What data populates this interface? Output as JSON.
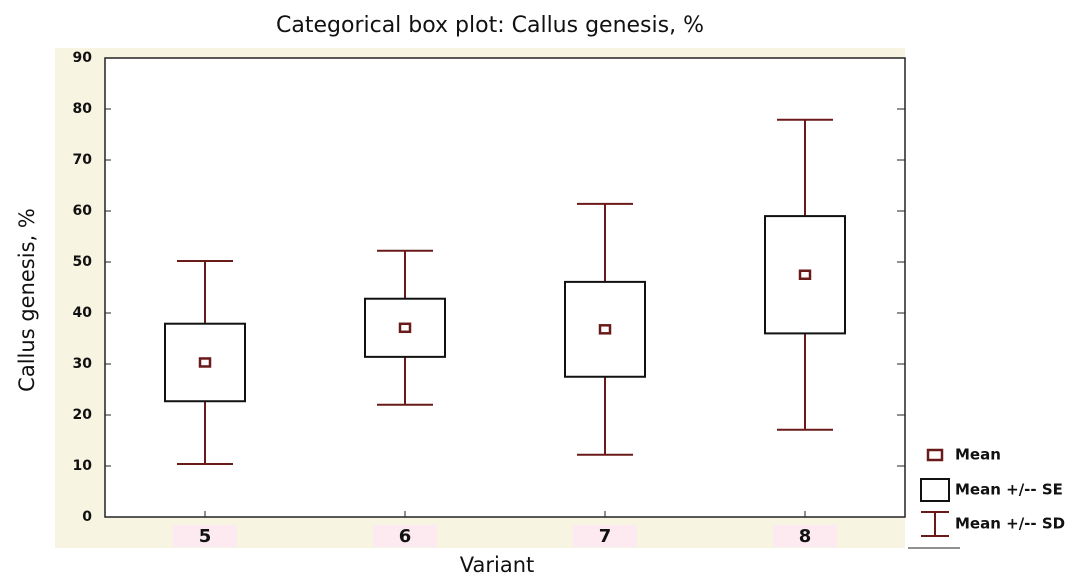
{
  "chart_data": {
    "type": "box",
    "title": "Categorical box plot: Callus genesis, %",
    "xlabel": "Variant",
    "ylabel": "Callus genesis, %",
    "categories": [
      "5",
      "6",
      "7",
      "8"
    ],
    "mean": [
      30.3,
      37.1,
      36.8,
      47.5
    ],
    "se": [
      7.6,
      5.7,
      9.3,
      11.5
    ],
    "sd": [
      19.9,
      15.1,
      24.6,
      30.4
    ],
    "ylim": [
      0,
      90
    ],
    "yticks": [
      0,
      10,
      20,
      30,
      40,
      50,
      60,
      70,
      80,
      90
    ],
    "box_color": "#111111",
    "whisker_color": "#6b1a1a",
    "legend": [
      "Mean",
      "Mean +/-- SE",
      "Mean +/-- SD"
    ]
  }
}
